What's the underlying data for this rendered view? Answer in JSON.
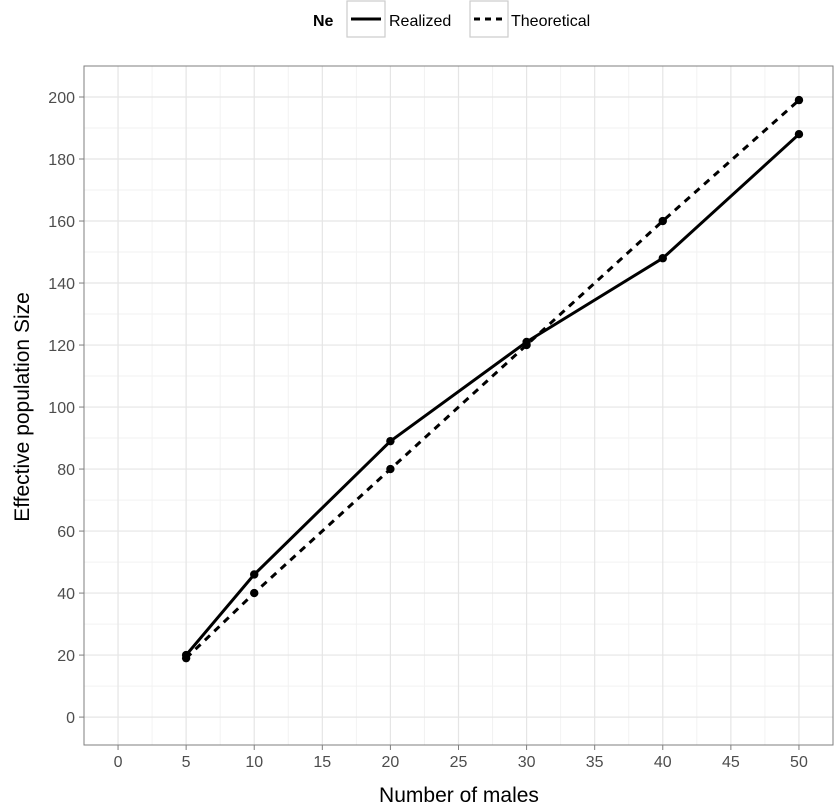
{
  "chart_data": {
    "type": "line",
    "xlabel": "Number of males",
    "ylabel": "Effective population Size",
    "xlim": [
      -2.5,
      52.5
    ],
    "ylim": [
      -9,
      210
    ],
    "x_ticks": [
      0,
      5,
      10,
      15,
      20,
      25,
      30,
      35,
      40,
      45,
      50
    ],
    "y_ticks": [
      0,
      20,
      40,
      60,
      80,
      100,
      120,
      140,
      160,
      180,
      200
    ],
    "grid": true,
    "legend": {
      "title": "Ne",
      "position": "top"
    },
    "x": [
      5,
      10,
      20,
      30,
      40,
      50
    ],
    "series": [
      {
        "name": "Realized",
        "line_style": "solid",
        "values": [
          20,
          46,
          89,
          121,
          148,
          188
        ]
      },
      {
        "name": "Theoretical",
        "line_style": "dashed",
        "values": [
          19,
          40,
          80,
          120,
          160,
          199
        ]
      }
    ],
    "colors": {
      "line": "#000000",
      "grid": "#e5e5e5",
      "panel_border": "#7f7f7f",
      "tick_text": "#4d4d4d"
    }
  }
}
